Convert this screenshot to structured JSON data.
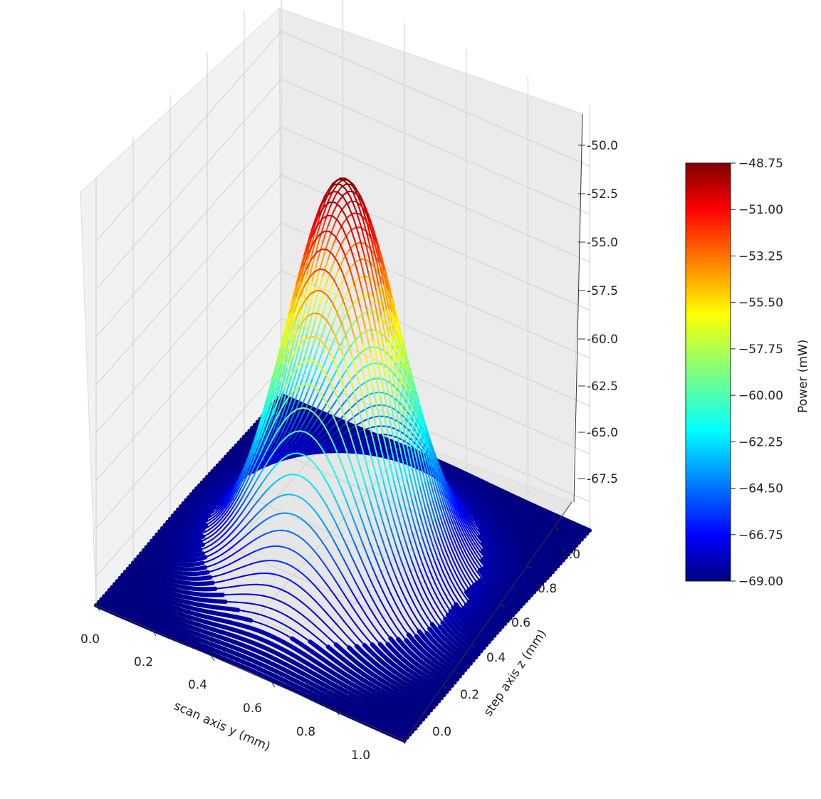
{
  "chart_data": {
    "type": "surface3d",
    "title": "",
    "x_label": "scan axis y (mm)",
    "y_label": "step axis z (mm)",
    "z_label": "",
    "x_range": [
      0.0,
      1.0
    ],
    "y_range": [
      0.0,
      1.0
    ],
    "z_range": [
      -69.0,
      -48.75
    ],
    "x_ticks": [
      "0.0",
      "0.2",
      "0.4",
      "0.6",
      "0.8",
      "1.0"
    ],
    "y_ticks": [
      "0.0",
      "0.2",
      "0.4",
      "0.6",
      "0.8",
      "1.0"
    ],
    "z_ticks": [
      "-50.0",
      "-52.5",
      "-55.0",
      "-57.5",
      "-60.0",
      "-62.5",
      "-65.0",
      "-67.5"
    ],
    "colorbar": {
      "label": "Power (mW)",
      "colormap": "jet",
      "min": -69.0,
      "max": -48.75,
      "ticks": [
        "−48.75",
        "−51.00",
        "−53.25",
        "−55.50",
        "−57.75",
        "−60.00",
        "−62.25",
        "−64.50",
        "−66.75",
        "−69.00"
      ]
    },
    "surface": {
      "shape": "gaussian",
      "peak_value": -48.75,
      "baseline_value": -69.0,
      "peak_location": [
        0.5,
        0.5
      ]
    },
    "grid": true
  }
}
